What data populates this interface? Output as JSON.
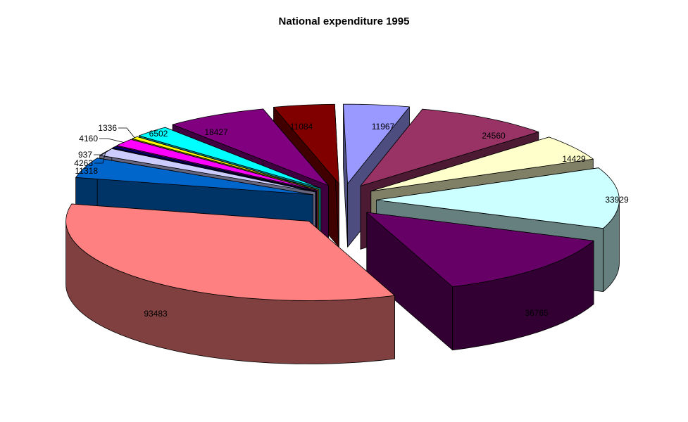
{
  "chart_data": {
    "type": "pie",
    "title": "National expenditure 1995",
    "values": [
      11967,
      24560,
      14429,
      33929,
      36765,
      93483,
      11318,
      4263,
      937,
      4160,
      1336,
      6502,
      18427,
      11084
    ],
    "labels": [
      "11967",
      "24560",
      "14429",
      "33929",
      "36765",
      "93483",
      "11318",
      "4263",
      "937",
      "4160",
      "1336",
      "6502",
      "18427",
      "11084"
    ],
    "colors": [
      "#9999ff",
      "#993366",
      "#ffffcc",
      "#ccffff",
      "#660066",
      "#ff8080",
      "#0066cc",
      "#ccccff",
      "#000080",
      "#ff00ff",
      "#ffff00",
      "#00ffff",
      "#800080",
      "#800000"
    ],
    "exploded": true,
    "three_d": true,
    "legend": "none"
  }
}
